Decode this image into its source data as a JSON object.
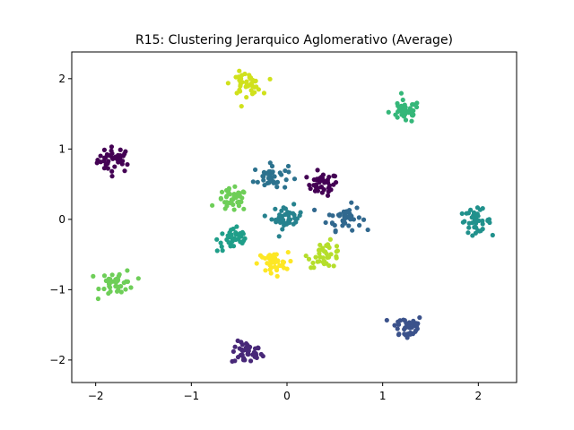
{
  "chart_data": {
    "type": "scatter",
    "title": "R15: Clustering Jerarquico Aglomerativo (Average)",
    "xlabel": "",
    "ylabel": "",
    "xlim": [
      -2.25,
      2.4
    ],
    "ylim": [
      -2.32,
      2.38
    ],
    "xticks": [
      -2,
      -1,
      0,
      1,
      2
    ],
    "yticks": [
      -2,
      -1,
      0,
      1,
      2
    ],
    "xtick_labels": [
      "−2",
      "−1",
      "0",
      "1",
      "2"
    ],
    "ytick_labels": [
      "−2",
      "−1",
      "0",
      "1",
      "2"
    ],
    "grid": false,
    "legend": "none",
    "clusters": [
      {
        "cx": -1.8,
        "cy": 0.85,
        "color": "#440154",
        "spread": 0.09,
        "n": 40
      },
      {
        "cx": 0.37,
        "cy": 0.5,
        "color": "#440154",
        "spread": 0.08,
        "n": 38
      },
      {
        "cx": -0.42,
        "cy": -1.9,
        "color": "#482878",
        "spread": 0.08,
        "n": 40
      },
      {
        "cx": 1.25,
        "cy": -1.53,
        "color": "#3b528b",
        "spread": 0.09,
        "n": 40
      },
      {
        "cx": 0.6,
        "cy": 0.03,
        "color": "#31688e",
        "spread": 0.09,
        "n": 40
      },
      {
        "cx": -0.17,
        "cy": 0.6,
        "color": "#2c728e",
        "spread": 0.09,
        "n": 40
      },
      {
        "cx": 0.0,
        "cy": 0.03,
        "color": "#26828e",
        "spread": 0.08,
        "n": 40
      },
      {
        "cx": 1.97,
        "cy": -0.02,
        "color": "#21918c",
        "spread": 0.08,
        "n": 40
      },
      {
        "cx": -0.55,
        "cy": -0.28,
        "color": "#1f9e89",
        "spread": 0.09,
        "n": 40
      },
      {
        "cx": 1.23,
        "cy": 1.53,
        "color": "#35b779",
        "spread": 0.08,
        "n": 40
      },
      {
        "cx": -0.57,
        "cy": 0.27,
        "color": "#6ece58",
        "spread": 0.08,
        "n": 40
      },
      {
        "cx": -1.77,
        "cy": -0.9,
        "color": "#6ece58",
        "spread": 0.09,
        "n": 40
      },
      {
        "cx": 0.4,
        "cy": -0.5,
        "color": "#b5de2b",
        "spread": 0.09,
        "n": 40
      },
      {
        "cx": -0.43,
        "cy": 1.93,
        "color": "#d0e11c",
        "spread": 0.08,
        "n": 40
      },
      {
        "cx": -0.15,
        "cy": -0.63,
        "color": "#fde725",
        "spread": 0.08,
        "n": 40
      }
    ]
  }
}
